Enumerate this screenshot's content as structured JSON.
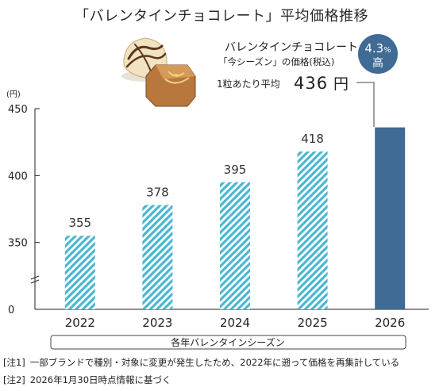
{
  "title": "「バレンタインチョコレート」平均価格推移",
  "chart_data": {
    "type": "bar",
    "categories": [
      "2022",
      "2023",
      "2024",
      "2025",
      "2026"
    ],
    "values": [
      355,
      378,
      395,
      418,
      436
    ],
    "value_labels": [
      "355",
      "378",
      "395",
      "418",
      ""
    ],
    "ylim": [
      0,
      450
    ],
    "yticks": [
      "0",
      "350",
      "400",
      "450"
    ],
    "yunit": "(円)",
    "xlabel": "各年バレンタインシーズン",
    "grid": false,
    "highlight_index": 4
  },
  "callout": {
    "line1": "バレンタインチョコレート",
    "line2": "「今シーズン」の価格(税込)",
    "line3": "1粒あたり平均",
    "value": "436",
    "unit": "円"
  },
  "badge": {
    "percent": "4.3",
    "percent_unit": "%",
    "label": "高"
  },
  "notes": [
    {
      "tag": "[注1]",
      "text": "一部ブランドで種別・対象に変更が発生したため、2022年に遡って価格を再集計している"
    },
    {
      "tag": "[注2]",
      "text": "2026年1月30日時点情報に基づく"
    }
  ],
  "colors": {
    "bar_hatch": "#4bb7cf",
    "bar_solid": "#3f6b94",
    "badge": "#3f6b94",
    "axis": "#222222"
  },
  "illustration": "chocolate-bonbons-icon"
}
